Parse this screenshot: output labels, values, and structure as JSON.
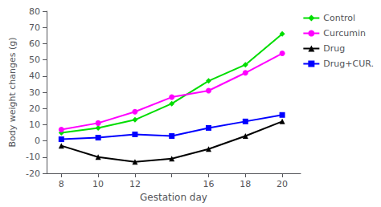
{
  "chart_data": {
    "type": "line",
    "xlabel": "Gestation day",
    "ylabel": "Body weight changes (g)",
    "x": [
      8,
      10,
      12,
      14,
      16,
      18,
      20
    ],
    "series": [
      {
        "name": "Control",
        "color": "#00dd00",
        "marker": "diamond",
        "values": [
          5,
          8,
          13,
          23,
          37,
          47,
          66
        ]
      },
      {
        "name": "Curcumin",
        "color": "#ff00ff",
        "marker": "circle",
        "values": [
          7,
          11,
          18,
          27,
          31,
          42,
          54
        ]
      },
      {
        "name": "Drug",
        "color": "#000000",
        "marker": "triangle",
        "values": [
          -3,
          -10,
          -13,
          -11,
          -5,
          3,
          12
        ]
      },
      {
        "name": "Drug+CUR.",
        "color": "#0000ff",
        "marker": "rect",
        "values": [
          1,
          2,
          4,
          3,
          8,
          12,
          16
        ]
      }
    ],
    "xlim": [
      7.2,
      21
    ],
    "xticks": [
      8,
      10,
      12,
      {
        "value": 14,
        "label": ""
      },
      16,
      18,
      20
    ],
    "ylim": [
      -20,
      80
    ],
    "yticks": [
      -20,
      -10,
      0,
      10,
      20,
      30,
      40,
      50,
      60,
      70,
      80
    ],
    "grid": false,
    "legend": "upper right"
  }
}
